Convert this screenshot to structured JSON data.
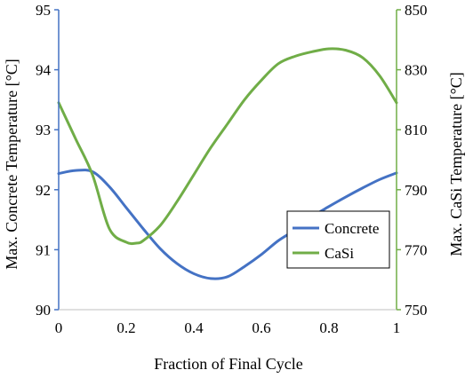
{
  "chart_data": {
    "type": "line",
    "title": "",
    "xlabel": "Fraction of Final Cycle",
    "ylabel_left": "Max. Concrete Temperature [°C]",
    "ylabel_right": "Max. CaSi Temperature [°C]",
    "xlim": [
      0,
      1
    ],
    "ylim_left": [
      90,
      95
    ],
    "ylim_right": [
      750,
      850
    ],
    "x_ticks": [
      "0",
      "0.2",
      "0.4",
      "0.6",
      "0.8",
      "1"
    ],
    "y_left_ticks": [
      "90",
      "91",
      "92",
      "93",
      "94",
      "95"
    ],
    "y_right_ticks": [
      "750",
      "770",
      "790",
      "810",
      "830",
      "850"
    ],
    "grid": false,
    "legend_position": "bottom-right",
    "series": [
      {
        "name": "Concrete",
        "axis": "left",
        "color": "#4472C4",
        "x": [
          0,
          0.05,
          0.1,
          0.15,
          0.2,
          0.25,
          0.3,
          0.35,
          0.4,
          0.45,
          0.5,
          0.55,
          0.6,
          0.65,
          0.7,
          0.75,
          0.8,
          0.85,
          0.9,
          0.95,
          1.0
        ],
        "y": [
          92.27,
          92.32,
          92.3,
          92.05,
          91.7,
          91.35,
          91.02,
          90.77,
          90.6,
          90.52,
          90.55,
          90.72,
          90.92,
          91.15,
          91.33,
          91.55,
          91.72,
          91.88,
          92.03,
          92.17,
          92.28
        ]
      },
      {
        "name": "CaSi",
        "axis": "right",
        "color": "#70AD47",
        "x": [
          0,
          0.05,
          0.1,
          0.15,
          0.2,
          0.23,
          0.25,
          0.3,
          0.35,
          0.4,
          0.45,
          0.5,
          0.55,
          0.6,
          0.65,
          0.7,
          0.75,
          0.8,
          0.85,
          0.9,
          0.95,
          1.0
        ],
        "y": [
          819,
          807,
          795,
          777,
          772.5,
          772.2,
          773,
          778,
          786,
          795,
          804,
          812,
          820,
          826.5,
          832,
          834.5,
          836,
          837,
          836.5,
          834,
          828,
          819
        ]
      }
    ]
  }
}
